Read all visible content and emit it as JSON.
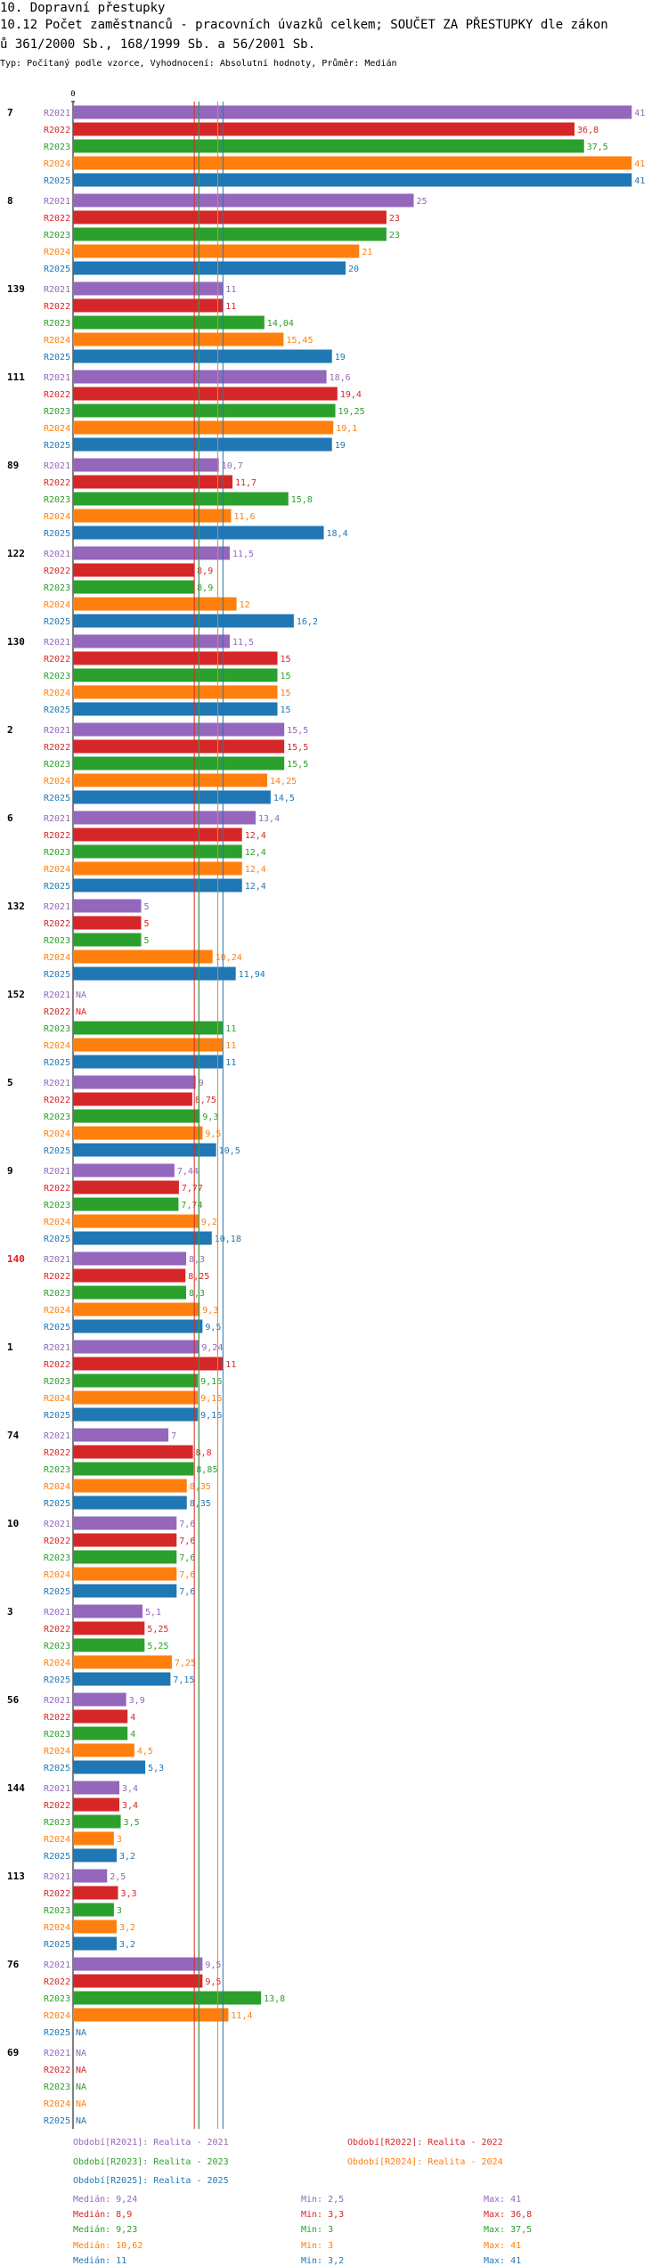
{
  "header": {
    "line1": "10. Dopravní přestupky",
    "line2": "10.12 Počet zaměstnanců - pracovních úvazků celkem; SOUČET ZA PŘESTUPKY dle zákon",
    "line3": "ů 361/2000 Sb., 168/1999 Sb. a 56/2001 Sb.",
    "line4": "Typ: Počítaný podle vzorce, Vyhodnocení: Absolutní hodnoty, Průměr: Medián"
  },
  "chart_data": {
    "type": "bar",
    "orientation": "horizontal",
    "axis_zero_label": "0",
    "xlim": [
      0,
      41
    ],
    "grid": false,
    "legend_position": "bottom",
    "colors": {
      "R2021": "#9467bd",
      "R2022": "#d62728",
      "R2023": "#2ca02c",
      "R2024": "#ff7f0e",
      "R2025": "#1f77b4",
      "highlight_group": "#e31a1c"
    },
    "series_names": [
      "R2021",
      "R2022",
      "R2023",
      "R2024",
      "R2025"
    ],
    "groups": [
      {
        "label": "7",
        "highlight": false,
        "values": [
          41,
          36.8,
          37.5,
          41,
          41
        ],
        "labels": [
          "41",
          "36,8",
          "37,5",
          "41",
          "41"
        ]
      },
      {
        "label": "8",
        "highlight": false,
        "values": [
          25,
          23,
          23,
          21,
          20
        ],
        "labels": [
          "25",
          "23",
          "23",
          "21",
          "20"
        ]
      },
      {
        "label": "139",
        "highlight": false,
        "values": [
          11,
          11,
          14.04,
          15.45,
          19
        ],
        "labels": [
          "11",
          "11",
          "14,04",
          "15,45",
          "19"
        ]
      },
      {
        "label": "111",
        "highlight": false,
        "values": [
          18.6,
          19.4,
          19.25,
          19.1,
          19
        ],
        "labels": [
          "18,6",
          "19,4",
          "19,25",
          "19,1",
          "19"
        ]
      },
      {
        "label": "89",
        "highlight": false,
        "values": [
          10.7,
          11.7,
          15.8,
          11.6,
          18.4
        ],
        "labels": [
          "10,7",
          "11,7",
          "15,8",
          "11,6",
          "18,4"
        ]
      },
      {
        "label": "122",
        "highlight": false,
        "values": [
          11.5,
          8.9,
          8.9,
          12,
          16.2
        ],
        "labels": [
          "11,5",
          "8,9",
          "8,9",
          "12",
          "16,2"
        ]
      },
      {
        "label": "130",
        "highlight": false,
        "values": [
          11.5,
          15,
          15,
          15,
          15
        ],
        "labels": [
          "11,5",
          "15",
          "15",
          "15",
          "15"
        ]
      },
      {
        "label": "2",
        "highlight": false,
        "values": [
          15.5,
          15.5,
          15.5,
          14.25,
          14.5
        ],
        "labels": [
          "15,5",
          "15,5",
          "15,5",
          "14,25",
          "14,5"
        ]
      },
      {
        "label": "6",
        "highlight": false,
        "values": [
          13.4,
          12.4,
          12.4,
          12.4,
          12.4
        ],
        "labels": [
          "13,4",
          "12,4",
          "12,4",
          "12,4",
          "12,4"
        ]
      },
      {
        "label": "132",
        "highlight": false,
        "values": [
          5,
          5,
          5,
          10.24,
          11.94
        ],
        "labels": [
          "5",
          "5",
          "5",
          "10,24",
          "11,94"
        ]
      },
      {
        "label": "152",
        "highlight": false,
        "values": [
          null,
          null,
          11,
          11,
          11
        ],
        "labels": [
          "NA",
          "NA",
          "11",
          "11",
          "11"
        ]
      },
      {
        "label": "5",
        "highlight": false,
        "values": [
          9,
          8.75,
          9.3,
          9.5,
          10.5
        ],
        "labels": [
          "9",
          "8,75",
          "9,3",
          "9,5",
          "10,5"
        ]
      },
      {
        "label": "9",
        "highlight": false,
        "values": [
          7.44,
          7.77,
          7.74,
          9.2,
          10.18
        ],
        "labels": [
          "7,44",
          "7,77",
          "7,74",
          "9,2",
          "10,18"
        ]
      },
      {
        "label": "140",
        "highlight": true,
        "values": [
          8.3,
          8.25,
          8.3,
          9.3,
          9.5
        ],
        "labels": [
          "8,3",
          "8,25",
          "8,3",
          "9,3",
          "9,5"
        ]
      },
      {
        "label": "1",
        "highlight": false,
        "values": [
          9.24,
          11,
          9.16,
          9.16,
          9.16
        ],
        "labels": [
          "9,24",
          "11",
          "9,16",
          "9,16",
          "9,16"
        ]
      },
      {
        "label": "74",
        "highlight": false,
        "values": [
          7,
          8.8,
          8.85,
          8.35,
          8.35
        ],
        "labels": [
          "7",
          "8,8",
          "8,85",
          "8,35",
          "8,35"
        ]
      },
      {
        "label": "10",
        "highlight": false,
        "values": [
          7.6,
          7.6,
          7.6,
          7.6,
          7.6
        ],
        "labels": [
          "7,6",
          "7,6",
          "7,6",
          "7,6",
          "7,6"
        ]
      },
      {
        "label": "3",
        "highlight": false,
        "values": [
          5.1,
          5.25,
          5.25,
          7.25,
          7.15
        ],
        "labels": [
          "5,1",
          "5,25",
          "5,25",
          "7,25",
          "7,15"
        ]
      },
      {
        "label": "56",
        "highlight": false,
        "values": [
          3.9,
          4,
          4,
          4.5,
          5.3
        ],
        "labels": [
          "3,9",
          "4",
          "4",
          "4,5",
          "5,3"
        ]
      },
      {
        "label": "144",
        "highlight": false,
        "values": [
          3.4,
          3.4,
          3.5,
          3,
          3.2
        ],
        "labels": [
          "3,4",
          "3,4",
          "3,5",
          "3",
          "3,2"
        ]
      },
      {
        "label": "113",
        "highlight": false,
        "values": [
          2.5,
          3.3,
          3,
          3.2,
          3.2
        ],
        "labels": [
          "2,5",
          "3,3",
          "3",
          "3,2",
          "3,2"
        ]
      },
      {
        "label": "76",
        "highlight": false,
        "values": [
          9.5,
          9.5,
          13.8,
          11.4,
          null
        ],
        "labels": [
          "9,5",
          "9,5",
          "13,8",
          "11,4",
          "NA"
        ]
      },
      {
        "label": "69",
        "highlight": false,
        "values": [
          null,
          null,
          null,
          null,
          null
        ],
        "labels": [
          "NA",
          "NA",
          "NA",
          "NA",
          "NA"
        ]
      }
    ],
    "median_lines": [
      {
        "series": "R2021",
        "value": 9.24
      },
      {
        "series": "R2022",
        "value": 8.9
      },
      {
        "series": "R2023",
        "value": 9.23
      },
      {
        "series": "R2024",
        "value": 10.62
      },
      {
        "series": "R2025",
        "value": 11
      }
    ]
  },
  "legend": [
    {
      "text": "Období[R2021]: Realita - 2021",
      "color": "#9467bd"
    },
    {
      "text": "Období[R2022]: Realita - 2022",
      "color": "#d62728"
    },
    {
      "text": "Období[R2023]: Realita - 2023",
      "color": "#2ca02c"
    },
    {
      "text": "Období[R2024]: Realita - 2024",
      "color": "#ff7f0e"
    },
    {
      "text": "Období[R2025]: Realita - 2025",
      "color": "#1f77b4"
    }
  ],
  "stats": [
    {
      "median": "Medián: 9,24",
      "min": "Min: 2,5",
      "max": "Max: 41",
      "color": "#9467bd"
    },
    {
      "median": "Medián: 8,9",
      "min": "Min: 3,3",
      "max": "Max: 36,8",
      "color": "#d62728"
    },
    {
      "median": "Medián: 9,23",
      "min": "Min: 3",
      "max": "Max: 37,5",
      "color": "#2ca02c"
    },
    {
      "median": "Medián: 10,62",
      "min": "Min: 3",
      "max": "Max: 41",
      "color": "#ff7f0e"
    },
    {
      "median": "Medián: 11",
      "min": "Min: 3,2",
      "max": "Max: 41",
      "color": "#1f77b4"
    }
  ]
}
